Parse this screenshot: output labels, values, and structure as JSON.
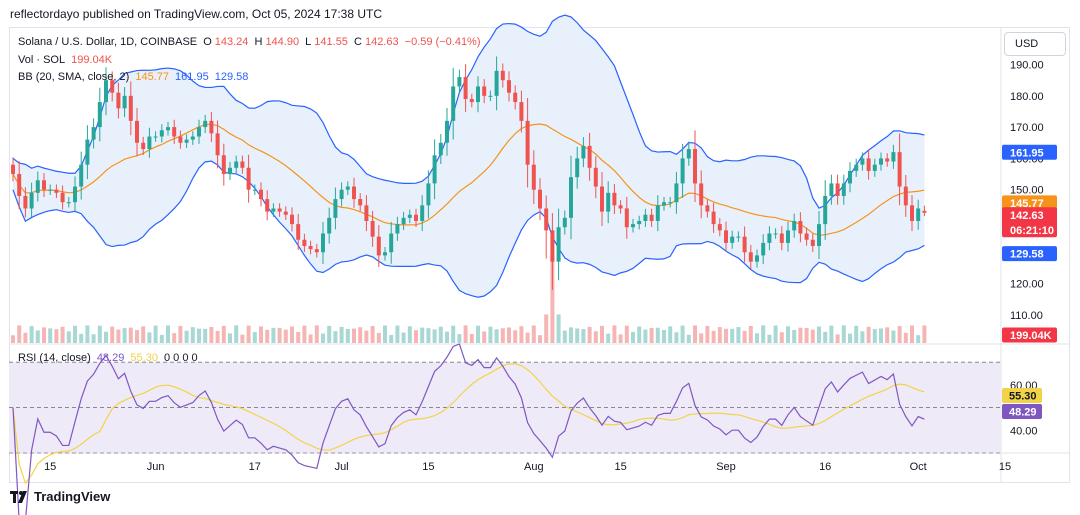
{
  "publisher": "reflectordayo published on TradingView.com, Oct 05, 2024 17:38 UTC",
  "legend": {
    "symbol": "Solana / U.S. Dollar, 1D, COINBASE",
    "o_label": "O",
    "o_value": "143.24",
    "h_label": "H",
    "h_value": "144.90",
    "l_label": "L",
    "l_value": "141.55",
    "c_label": "C",
    "c_value": "142.63",
    "change": "−0.59 (−0.41%)",
    "vol_label": "Vol · SOL",
    "vol_value": "199.04K",
    "bb_label": "BB (20, SMA, close, 2)",
    "bb_basis": "145.77",
    "bb_upper": "161.95",
    "bb_lower": "129.58",
    "rsi_label": "RSI (14, close)",
    "rsi_value": "48.29",
    "rsi_ma": "55.30",
    "rsi_extra": "0 0 0 0"
  },
  "currency_button": "USD",
  "footer": {
    "brand": "TradingView",
    "logo_icon": "tradingview-logo-icon"
  },
  "colors": {
    "up": "#26a69a",
    "down": "#ef5350",
    "bb_band": "#2962ff",
    "bb_basis": "#f7931a",
    "bb_fill": "#e8f1fb",
    "rsi_line": "#7e57c2",
    "rsi_ma": "#f2d348",
    "rsi_fill": "#efeaf8",
    "price_tag": "#f23645"
  },
  "chart_data": [
    {
      "type": "candlestick",
      "title": "Solana / U.S. Dollar, 1D, COINBASE",
      "price_axis_ticks": [
        190,
        180,
        170,
        160,
        150,
        140,
        130,
        120,
        110
      ],
      "price_axis_labels": [
        "190.00",
        "180.00",
        "170.00",
        "160.00",
        "150.00",
        "140.00",
        "130.00",
        "120.00",
        "110.00"
      ],
      "ylim": [
        101,
        202
      ],
      "x_axis_labels": [
        {
          "label": "15",
          "bar": 6
        },
        {
          "label": "Jun",
          "bar": 23
        },
        {
          "label": "17",
          "bar": 39
        },
        {
          "label": "Jul",
          "bar": 53
        },
        {
          "label": "15",
          "bar": 67
        },
        {
          "label": "Aug",
          "bar": 84
        },
        {
          "label": "15",
          "bar": 98
        },
        {
          "label": "Sep",
          "bar": 115
        },
        {
          "label": "16",
          "bar": 131
        },
        {
          "label": "Oct",
          "bar": 146
        },
        {
          "label": "15",
          "bar": 160
        }
      ],
      "closes": [
        155,
        148,
        144,
        149,
        153,
        150,
        150,
        149,
        146,
        146,
        151,
        158,
        166,
        170,
        178,
        185,
        181,
        176,
        180,
        172,
        165,
        163,
        167,
        167,
        169,
        170,
        167,
        165,
        166,
        167,
        170,
        172,
        168,
        161,
        155,
        157,
        159,
        157,
        150,
        150,
        147,
        143,
        144,
        143,
        142,
        139,
        134,
        132,
        131,
        130,
        136,
        141,
        147,
        150,
        151,
        147,
        145,
        140,
        135,
        129,
        130,
        136,
        139,
        141,
        142,
        140,
        145,
        152,
        161,
        165,
        172,
        183,
        186,
        179,
        178,
        183,
        180,
        180,
        188,
        185,
        181,
        178,
        172,
        158,
        150,
        144,
        137,
        127,
        138,
        141,
        154,
        160,
        164,
        157,
        151,
        143,
        149,
        145,
        144,
        138,
        139,
        140,
        142,
        140,
        145,
        146,
        146,
        152,
        160,
        163,
        152,
        145,
        143,
        139,
        137,
        133,
        135,
        135,
        130,
        127,
        129,
        133,
        136,
        136,
        133,
        137,
        140,
        136,
        134,
        132,
        139,
        148,
        152,
        148,
        152,
        156,
        158,
        160,
        156,
        158,
        160,
        159,
        162,
        151,
        145,
        140,
        144,
        142.63
      ],
      "current_price": "142.63",
      "countdown": "06:21:10",
      "bollinger": {
        "period": 20,
        "basis": "145.77",
        "upper": "161.95",
        "lower": "129.58"
      }
    },
    {
      "type": "bar",
      "title": "Vol · SOL",
      "current_volume": "199.04K"
    },
    {
      "type": "line",
      "title": "RSI (14, close)",
      "y_axis_labels": [
        "60.00",
        "40.00"
      ],
      "ylim": [
        30,
        78
      ],
      "bands": [
        70,
        50,
        30
      ],
      "current_rsi": "48.29",
      "current_rsi_ma": "55.30"
    }
  ]
}
